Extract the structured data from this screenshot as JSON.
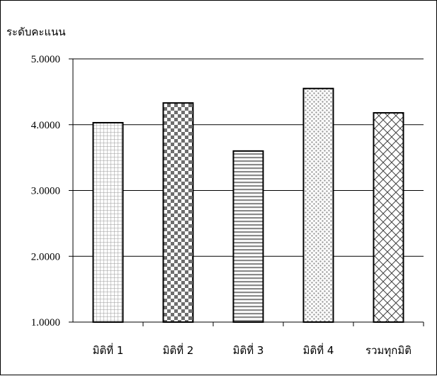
{
  "chart_data": {
    "type": "bar",
    "ylabel": "ระดับคะแนน",
    "categories": [
      "มิติที่ 1",
      "มิติที่ 2",
      "มิติที่ 3",
      "มิติที่ 4",
      "รวมทุกมิติ"
    ],
    "values": [
      4.03,
      4.33,
      3.6,
      4.55,
      4.18
    ],
    "ylim": [
      1,
      5
    ],
    "yticks": [
      1,
      2,
      3,
      4,
      5
    ],
    "ytick_labels": [
      "1.0000",
      "2.0000",
      "3.0000",
      "4.0000",
      "5.0000"
    ],
    "grid": true,
    "patterns": [
      "small-grid",
      "checkerboard",
      "horizontal-stripes",
      "dots",
      "diagonal-crosshatch"
    ]
  }
}
